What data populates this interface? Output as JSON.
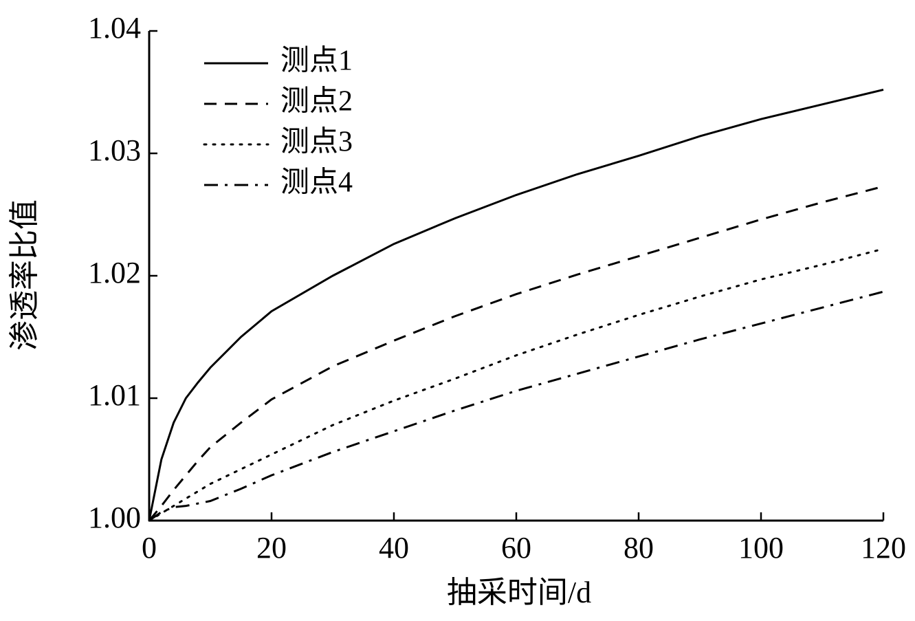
{
  "chart_data": {
    "type": "line",
    "x_label": "抽采时间/d",
    "y_label": "渗透率比值",
    "x": [
      0,
      2,
      4,
      6,
      8,
      10,
      15,
      20,
      30,
      40,
      50,
      60,
      70,
      80,
      90,
      100,
      110,
      120
    ],
    "series": [
      {
        "name": "测点1",
        "color": "#000000",
        "dash": "solid",
        "values": [
          1.0,
          1.005,
          1.008,
          1.01,
          1.0113,
          1.0125,
          1.015,
          1.0171,
          1.02,
          1.0226,
          1.0247,
          1.0266,
          1.0283,
          1.0298,
          1.0314,
          1.0328,
          1.034,
          1.0352
        ]
      },
      {
        "name": "测点2",
        "color": "#000000",
        "dash": "dashed",
        "values": [
          1.0,
          1.0012,
          1.0025,
          1.0037,
          1.0049,
          1.006,
          1.008,
          1.0099,
          1.0126,
          1.0147,
          1.0167,
          1.0185,
          1.0201,
          1.0216,
          1.0231,
          1.0246,
          1.026,
          1.0273
        ]
      },
      {
        "name": "测点3",
        "color": "#000000",
        "dash": "dotted",
        "values": [
          1.0,
          1.0006,
          1.0012,
          1.0018,
          1.0024,
          1.003,
          1.0042,
          1.0054,
          1.0078,
          1.0098,
          1.0116,
          1.0135,
          1.0152,
          1.0168,
          1.0183,
          1.0197,
          1.0209,
          1.0222
        ]
      },
      {
        "name": "测点4",
        "color": "#000000",
        "dash": "dashdot",
        "values": [
          1.0,
          1.0007,
          1.0011,
          1.0012,
          1.0014,
          1.0016,
          1.0026,
          1.0037,
          1.0056,
          1.0073,
          1.009,
          1.0106,
          1.012,
          1.0134,
          1.0148,
          1.0161,
          1.0174,
          1.0187
        ]
      }
    ],
    "xlim": [
      0,
      120
    ],
    "xticks": [
      0,
      20,
      40,
      60,
      80,
      100,
      120
    ],
    "ylim": [
      1.0,
      1.04
    ],
    "yticks": [
      {
        "value": 1.0,
        "label": "1.00"
      },
      1.01,
      1.02,
      1.03,
      1.04
    ],
    "grid": false,
    "legend": "upper left"
  }
}
